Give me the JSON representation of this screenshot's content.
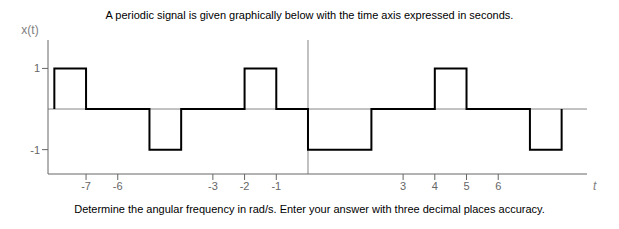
{
  "chart_data": {
    "type": "line",
    "title": "A periodic signal is given graphically below with the time axis expressed in seconds.",
    "subtitle": "Determine the angular frequency in rad/s. Enter your answer with three decimal places accuracy.",
    "xlabel": "t",
    "ylabel": "x(t)",
    "x": [
      -8,
      -8,
      -7,
      -7,
      -5,
      -5,
      -4,
      -4,
      -2,
      -2,
      -1,
      -1,
      0,
      0,
      2,
      2,
      4,
      4,
      5,
      5,
      7,
      7,
      8,
      8
    ],
    "series": [
      {
        "name": "x(t)",
        "color": "#000000",
        "values": [
          0,
          1,
          1,
          0,
          0,
          -1,
          -1,
          0,
          0,
          1,
          1,
          0,
          0,
          -1,
          -1,
          0,
          0,
          1,
          1,
          0,
          0,
          -1,
          -1,
          0
        ]
      }
    ],
    "xlim": [
      -8.2,
      8.8
    ],
    "ylim": [
      -1.6,
      1.7
    ],
    "xticks": [
      -7,
      -6,
      -3,
      -2,
      -1,
      3,
      4,
      5,
      6
    ],
    "yticks": [
      -1,
      1
    ],
    "grid": false
  }
}
